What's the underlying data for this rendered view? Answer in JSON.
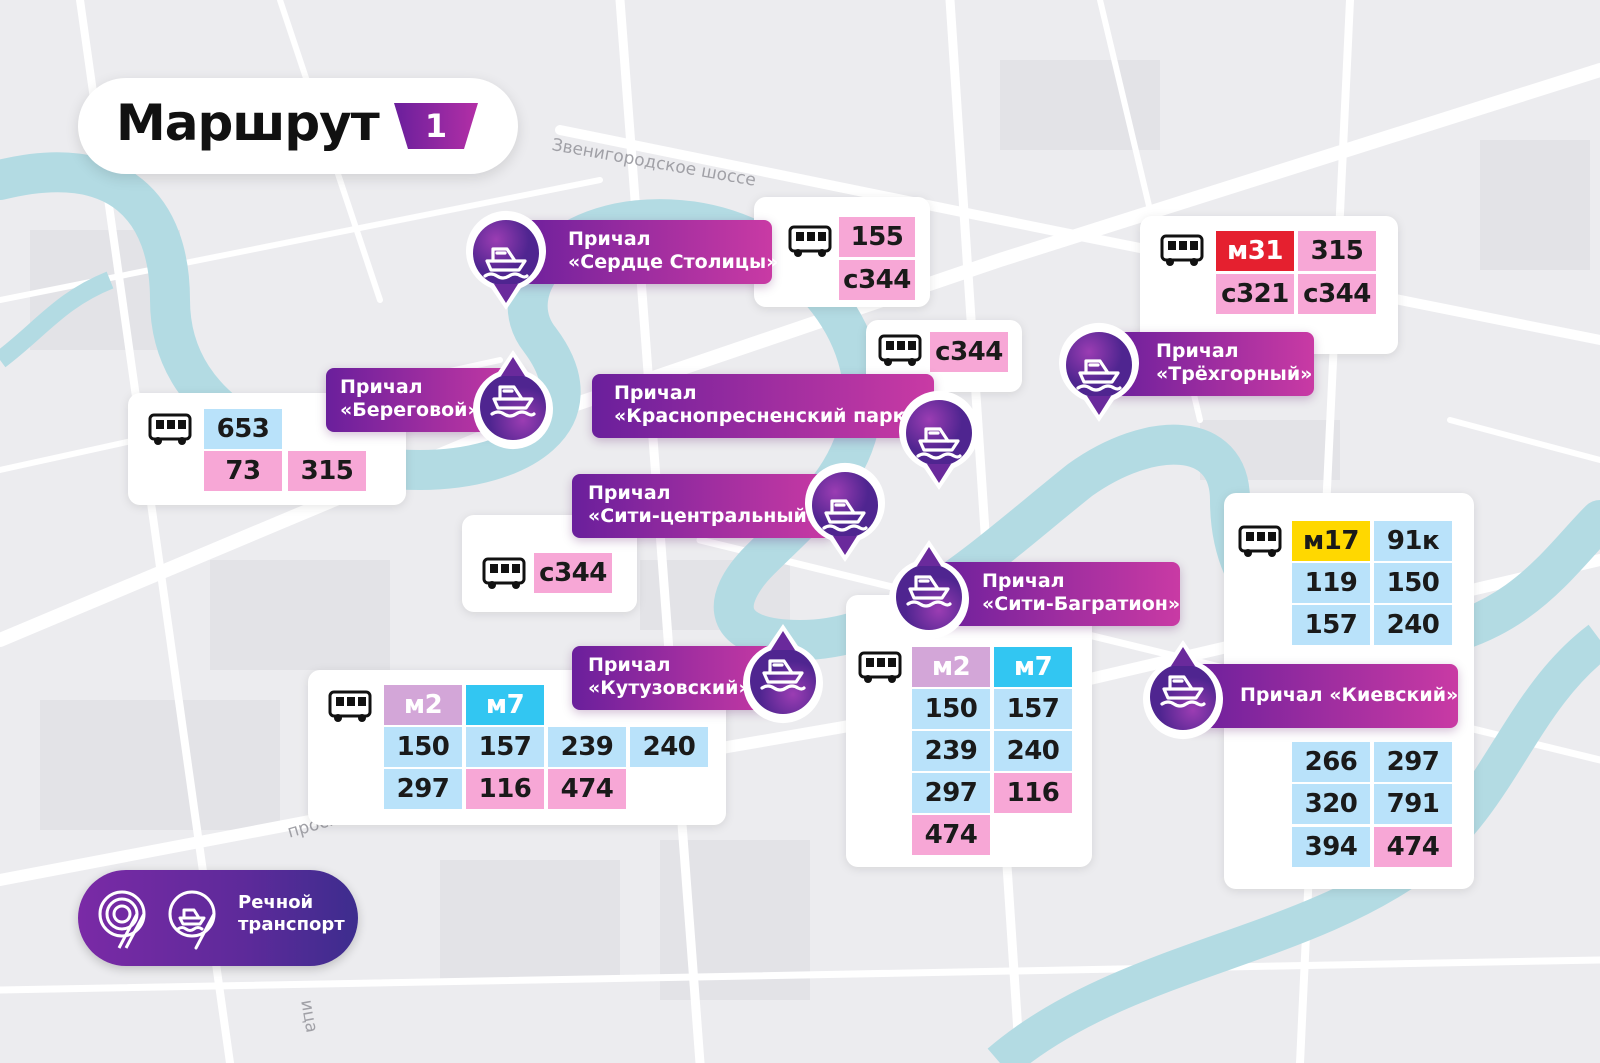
{
  "header": {
    "title": "Маршрут",
    "route_number": "1"
  },
  "street_labels": {
    "zvenigorod": "Звенигородское шоссе",
    "prospect": "просп",
    "ulitsa": "ица"
  },
  "piers": {
    "serdtse": {
      "line1": "Причал",
      "line2": "«Сердце Столицы»",
      "icon": "boat-icon"
    },
    "beregovoy": {
      "line1": "Причал",
      "line2": "«Береговой»",
      "icon": "boat-icon"
    },
    "krasnopresnensky": {
      "line1": "Причал",
      "line2": "«Краснопресненский парк»",
      "icon": "boat-icon"
    },
    "trekhgorny": {
      "line1": "Причал",
      "line2": "«Трёхгорный»",
      "icon": "boat-icon"
    },
    "siti_central": {
      "line1": "Причал",
      "line2": "«Сити-центральный»",
      "icon": "boat-icon"
    },
    "siti_bagration": {
      "line1": "Причал",
      "line2": "«Сити-Багратион»",
      "icon": "boat-icon"
    },
    "kutuzovsky": {
      "line1": "Причал",
      "line2": "«Кутузовский»",
      "icon": "boat-icon"
    },
    "kievsky": {
      "line1": "Причал «Киевский»",
      "icon": "boat-icon"
    }
  },
  "bus_cards": {
    "serdtse": {
      "icon": "bus-icon",
      "routes": [
        "155",
        "с344"
      ]
    },
    "trekhgorny": {
      "icon": "bus-icon",
      "routes": [
        "м31",
        "315",
        "с321",
        "с344"
      ]
    },
    "krasnopresnensky": {
      "icon": "bus-icon",
      "routes": [
        "с344"
      ]
    },
    "beregovoy": {
      "icon": "bus-icon",
      "routes": [
        "653",
        "73",
        "315"
      ]
    },
    "siti_central": {
      "icon": "bus-icon",
      "routes": [
        "с344"
      ]
    },
    "kutuzovsky": {
      "icon": "bus-icon",
      "routes": [
        "м2",
        "м7",
        "150",
        "157",
        "239",
        "240",
        "297",
        "116",
        "474"
      ]
    },
    "siti_bagration": {
      "icon": "bus-icon",
      "routes": [
        "м2",
        "м7",
        "150",
        "157",
        "239",
        "240",
        "297",
        "116",
        "474"
      ]
    },
    "kievsky": {
      "icon": "bus-icon",
      "routes_top": [
        "м17",
        "91к",
        "119",
        "150",
        "157",
        "240"
      ],
      "routes_bottom": [
        "266",
        "297",
        "320",
        "791",
        "394",
        "474"
      ]
    }
  },
  "footer": {
    "logo_line1": "Речной",
    "logo_line2": "транспорт",
    "icons": [
      "metro-loop-icon",
      "river-transport-icon"
    ]
  },
  "colors": {
    "pier_gradient_start": "#6a1f9c",
    "pier_gradient_end": "#c93aa4",
    "route_pink": "#f7a7d6",
    "route_blue": "#b9e2fa",
    "route_red": "#e5202f",
    "route_lilac": "#d3a6d8",
    "route_cyan": "#32c6f2",
    "route_yellow": "#ffd800",
    "river": "#b3dbe3",
    "map_bg": "#ececef"
  }
}
